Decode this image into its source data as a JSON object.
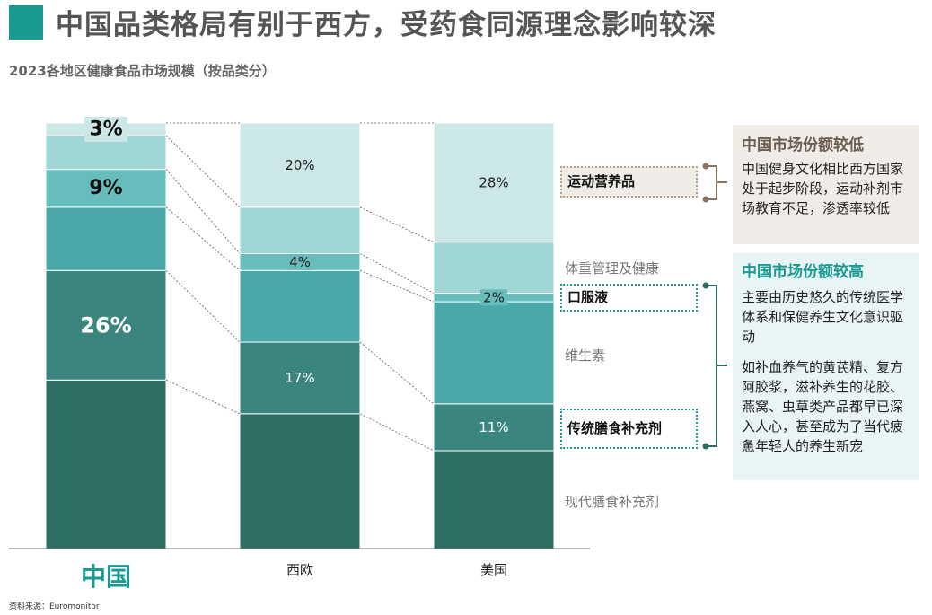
{
  "title": "中国品类格局有别于西方，受药食同源理念影响较深",
  "subtitle": "2023各地区健康食品市场规模（按品类分）",
  "source": "资料来源：Euromonitor",
  "colors": {
    "accent": "#1a9a92",
    "brown": "#8a7563",
    "seg_traditional": "#2d6f63",
    "seg_modern": "#3b857f",
    "seg_vitamins": "#4aa8a8",
    "seg_oral": "#66bdbb",
    "seg_weight": "#a0d6d5",
    "seg_sport": "#cbe7e6"
  },
  "categories_display": {
    "sport": "运动营养品",
    "weight": "体重管理及健康",
    "oral": "口服液",
    "vitamins": "维生素",
    "traditional": "传统膳食补充剂",
    "modern": "现代膳食补充剂"
  },
  "chart_data": {
    "type": "bar",
    "stacked": true,
    "normalized_percent": true,
    "categories": [
      "中国",
      "西欧",
      "美国"
    ],
    "highlight_category": "中国",
    "series": [
      {
        "key": "modern",
        "values": [
          40,
          32,
          23
        ]
      },
      {
        "key": "traditional",
        "values": [
          26,
          17,
          11
        ]
      },
      {
        "key": "vitamins",
        "values": [
          15,
          17,
          24
        ]
      },
      {
        "key": "oral",
        "values": [
          9,
          4,
          2
        ]
      },
      {
        "key": "weight",
        "values": [
          8,
          11,
          12
        ]
      },
      {
        "key": "sport",
        "values": [
          3,
          20,
          28
        ]
      }
    ],
    "data_labels": [
      {
        "category": "中国",
        "series": "oral",
        "text": "9%"
      },
      {
        "category": "中国",
        "series": "traditional",
        "text": "26%"
      },
      {
        "category": "中国",
        "series": "sport",
        "text": "3%"
      },
      {
        "category": "西欧",
        "series": "sport",
        "text": "20%"
      },
      {
        "category": "西欧",
        "series": "oral",
        "text": "4%"
      },
      {
        "category": "西欧",
        "series": "traditional",
        "text": "17%"
      },
      {
        "category": "美国",
        "series": "sport",
        "text": "28%"
      },
      {
        "category": "美国",
        "series": "oral",
        "text": "2%"
      },
      {
        "category": "美国",
        "series": "traditional",
        "text": "11%"
      }
    ],
    "ylim": [
      0,
      100
    ]
  },
  "boxes": {
    "low": {
      "title": "中国市场份额较低",
      "text": "中国健身文化相比西方国家处于起步阶段，运动补剂市场教育不足，渗透率较低"
    },
    "high": {
      "title": "中国市场份额较高",
      "text1": "主要由历史悠久的传统医学体系和保健养生文化意识驱动",
      "text2": "如补血养气的黄芪精、复方阿胶浆，滋补养生的花胶、燕窝、虫草类产品都早已深入人心，甚至成为了当代疲惫年轻人的养生新宠"
    }
  }
}
